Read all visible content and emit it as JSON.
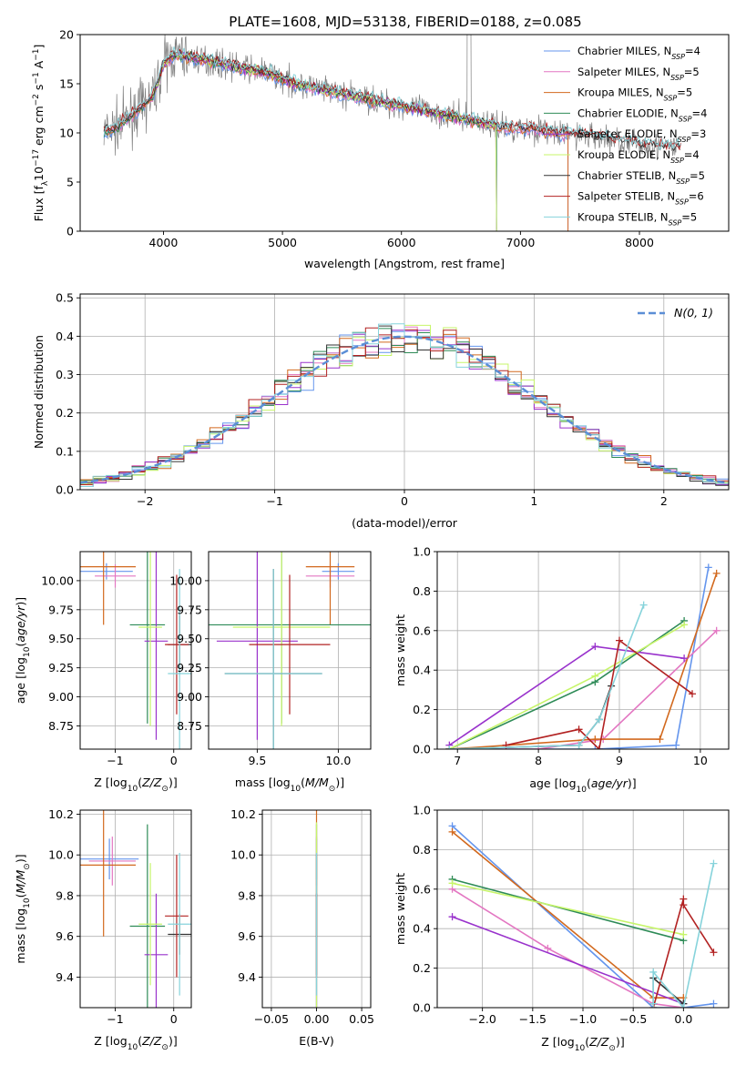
{
  "title": "PLATE=1608, MJD=53138, FIBERID=0188, z=0.085",
  "colors": {
    "Chabrier MILES": "#6495ed",
    "Salpeter MILES": "#e377c2",
    "Kroupa MILES": "#d2691e",
    "Chabrier ELODIE": "#2e8b57",
    "Salpeter ELODIE": "#9932cc",
    "Kroupa ELODIE": "#c7f56a",
    "Chabrier STELIB": "#333333",
    "Salpeter STELIB": "#b22222",
    "Kroupa STELIB": "#86d3db",
    "data": "#808080"
  },
  "chart_data": [
    {
      "id": "spectrum",
      "type": "line",
      "title": "PLATE=1608, MJD=53138, FIBERID=0188, z=0.085",
      "xlabel": "wavelength [Angstrom, rest frame]",
      "ylabel": "Flux [f_λ 10^-17 erg cm^-2 s^-1 A^-1]",
      "xlim": [
        3300,
        8750
      ],
      "ylim": [
        0,
        20
      ],
      "xticks": [
        4000,
        5000,
        6000,
        7000,
        8000
      ],
      "yticks": [
        0,
        5,
        10,
        15,
        20
      ],
      "legend_position": "top-right",
      "legend": [
        {
          "model": "Chabrier MILES",
          "nssp": "4"
        },
        {
          "model": "Salpeter MILES",
          "nssp": "5"
        },
        {
          "model": "Kroupa MILES",
          "nssp": "5"
        },
        {
          "model": "Chabrier ELODIE",
          "nssp": "4"
        },
        {
          "model": "Salpeter ELODIE",
          "nssp": "3"
        },
        {
          "model": "Kroupa ELODIE",
          "nssp": "4"
        },
        {
          "model": "Chabrier STELIB",
          "nssp": "5"
        },
        {
          "model": "Salpeter STELIB",
          "nssp": "6"
        },
        {
          "model": "Kroupa STELIB",
          "nssp": "5"
        }
      ],
      "continuum": {
        "x": [
          3500,
          3600,
          3700,
          3800,
          3900,
          3950,
          4000,
          4100,
          4300,
          4500,
          4700,
          4900,
          5100,
          5300,
          5500,
          5700,
          5900,
          6100,
          6300,
          6500,
          6700,
          6900,
          7100,
          7300,
          7500,
          7700,
          7900,
          8100,
          8300
        ],
        "y": [
          10,
          10.5,
          11.5,
          12.5,
          13.5,
          15,
          17,
          18,
          17.5,
          17,
          16.5,
          16,
          15,
          14.5,
          14,
          13.5,
          13,
          12.5,
          12,
          11.5,
          11,
          10.5,
          10.5,
          10,
          9.8,
          9.5,
          9,
          8.7,
          8.5
        ]
      }
    },
    {
      "id": "residuals",
      "type": "line",
      "xlabel": "(data-model)/error",
      "ylabel": "Normed distribution",
      "xlim": [
        -2.5,
        2.5
      ],
      "ylim": [
        0,
        0.51
      ],
      "xticks": [
        -2,
        -1,
        0,
        1,
        2
      ],
      "yticks": [
        0.0,
        0.1,
        0.2,
        0.3,
        0.4,
        0.5
      ],
      "legend_position": "top-right",
      "reference_label": "N(0, 1)",
      "bin_width": 0.1
    },
    {
      "id": "age-vs-Z",
      "type": "scatter",
      "xlabel": "Z [log10(Z/Z⊙)]",
      "ylabel": "age  [log10(age/yr)]",
      "xlim": [
        -1.6,
        0.3
      ],
      "ylim": [
        8.55,
        10.25
      ],
      "xticks": [
        -1,
        0
      ],
      "yticks": [
        8.75,
        9.0,
        9.25,
        9.5,
        9.75,
        10.0
      ],
      "points": [
        {
          "model": "Chabrier MILES",
          "x": -1.15,
          "xerr": 0.45,
          "y": 10.08,
          "yerr": 0.07
        },
        {
          "model": "Salpeter MILES",
          "x": -1.0,
          "xerr": 0.35,
          "y": 10.04,
          "yerr": 0.1
        },
        {
          "model": "Kroupa MILES",
          "x": -1.2,
          "xerr": 0.55,
          "y": 10.12,
          "yerr": 0.5
        },
        {
          "model": "Chabrier ELODIE",
          "x": -0.45,
          "xerr": 0.3,
          "y": 9.62,
          "yerr": 0.85
        },
        {
          "model": "Salpeter ELODIE",
          "x": -0.3,
          "xerr": 0.2,
          "y": 9.48,
          "yerr": 0.85
        },
        {
          "model": "Kroupa ELODIE",
          "x": -0.4,
          "xerr": 0.2,
          "y": 9.6,
          "yerr": 0.85
        },
        {
          "model": "Chabrier STELIB",
          "x": 0.1,
          "xerr": 0.2,
          "y": 9.45,
          "yerr": 0.25
        },
        {
          "model": "Salpeter STELIB",
          "x": 0.05,
          "xerr": 0.2,
          "y": 9.45,
          "yerr": 0.6
        },
        {
          "model": "Kroupa STELIB",
          "x": 0.1,
          "xerr": 0.2,
          "y": 9.2,
          "yerr": 0.9
        }
      ]
    },
    {
      "id": "age-vs-mass",
      "type": "scatter",
      "xlabel": "mass [log10(M/M⊙)]",
      "ylabel": "",
      "xlim": [
        9.2,
        10.2
      ],
      "ylim": [
        8.55,
        10.25
      ],
      "xticks": [
        9.5,
        10.0
      ],
      "yticks": [
        8.75,
        9.0,
        9.25,
        9.5,
        9.75,
        10.0
      ],
      "points": [
        {
          "model": "Chabrier MILES",
          "x": 10.0,
          "xerr": 0.1,
          "y": 10.08,
          "yerr": 0.07
        },
        {
          "model": "Salpeter MILES",
          "x": 9.95,
          "xerr": 0.15,
          "y": 10.04,
          "yerr": 0.1
        },
        {
          "model": "Kroupa MILES",
          "x": 9.95,
          "xerr": 0.15,
          "y": 10.12,
          "yerr": 0.5
        },
        {
          "model": "Chabrier ELODIE",
          "x": 9.65,
          "xerr": 0.55,
          "y": 9.62,
          "yerr": 0.85
        },
        {
          "model": "Salpeter ELODIE",
          "x": 9.5,
          "xerr": 0.25,
          "y": 9.48,
          "yerr": 0.85
        },
        {
          "model": "Kroupa ELODIE",
          "x": 9.65,
          "xerr": 0.3,
          "y": 9.6,
          "yerr": 0.85
        },
        {
          "model": "Chabrier STELIB",
          "x": 9.6,
          "xerr": 0.3,
          "y": 9.2,
          "yerr": 0.9
        },
        {
          "model": "Salpeter STELIB",
          "x": 9.7,
          "xerr": 0.25,
          "y": 9.45,
          "yerr": 0.6
        },
        {
          "model": "Kroupa STELIB",
          "x": 9.6,
          "xerr": 0.3,
          "y": 9.2,
          "yerr": 0.9
        }
      ]
    },
    {
      "id": "mass-weight-vs-age",
      "type": "line",
      "xlabel": "age  [log10(age/yr)]",
      "ylabel": "mass weight",
      "xlim": [
        6.75,
        10.35
      ],
      "ylim": [
        0,
        1
      ],
      "xticks": [
        7,
        8,
        9,
        10
      ],
      "yticks": [
        0.0,
        0.2,
        0.4,
        0.6,
        0.8,
        1.0
      ],
      "series": [
        {
          "model": "Chabrier MILES",
          "x": [
            6.9,
            8.7,
            9.7,
            10.1
          ],
          "y": [
            0.0,
            0.0,
            0.02,
            0.92
          ]
        },
        {
          "model": "Salpeter MILES",
          "x": [
            6.9,
            8.0,
            8.8,
            10.2
          ],
          "y": [
            0.0,
            0.0,
            0.05,
            0.6
          ]
        },
        {
          "model": "Kroupa MILES",
          "x": [
            6.9,
            8.7,
            9.5,
            10.2
          ],
          "y": [
            0.0,
            0.05,
            0.05,
            0.89
          ]
        },
        {
          "model": "Chabrier ELODIE",
          "x": [
            6.9,
            8.7,
            9.8
          ],
          "y": [
            0.0,
            0.34,
            0.65
          ]
        },
        {
          "model": "Salpeter ELODIE",
          "x": [
            6.9,
            8.7,
            9.8
          ],
          "y": [
            0.02,
            0.52,
            0.46
          ]
        },
        {
          "model": "Kroupa ELODIE",
          "x": [
            6.9,
            8.7,
            9.8
          ],
          "y": [
            0.0,
            0.37,
            0.63
          ]
        },
        {
          "model": "Chabrier STELIB",
          "x": [
            6.9,
            8.5,
            8.75,
            8.9
          ],
          "y": [
            0.0,
            0.02,
            0.15,
            0.32
          ]
        },
        {
          "model": "Salpeter STELIB",
          "x": [
            7.6,
            8.5,
            8.75,
            9.0,
            9.9
          ],
          "y": [
            0.02,
            0.1,
            0.0,
            0.55,
            0.28
          ]
        },
        {
          "model": "Kroupa STELIB",
          "x": [
            6.9,
            8.5,
            8.75,
            9.3
          ],
          "y": [
            0.0,
            0.02,
            0.15,
            0.73
          ]
        }
      ]
    },
    {
      "id": "mass-vs-Z",
      "type": "scatter",
      "xlabel": "Z [log10(Z/Z⊙)]",
      "ylabel": "mass [log10(M/M⊙)]",
      "xlim": [
        -1.6,
        0.3
      ],
      "ylim": [
        9.25,
        10.22
      ],
      "xticks": [
        -1,
        0
      ],
      "yticks": [
        9.4,
        9.6,
        9.8,
        10.0,
        10.2
      ],
      "points": [
        {
          "model": "Chabrier MILES",
          "x": -1.1,
          "xerr": 0.5,
          "y": 9.98,
          "yerr": 0.1
        },
        {
          "model": "Salpeter MILES",
          "x": -1.05,
          "xerr": 0.4,
          "y": 9.97,
          "yerr": 0.12
        },
        {
          "model": "Kroupa MILES",
          "x": -1.2,
          "xerr": 0.55,
          "y": 9.95,
          "yerr": 0.35
        },
        {
          "model": "Chabrier ELODIE",
          "x": -0.45,
          "xerr": 0.3,
          "y": 9.65,
          "yerr": 0.5
        },
        {
          "model": "Salpeter ELODIE",
          "x": -0.3,
          "xerr": 0.2,
          "y": 9.51,
          "yerr": 0.3
        },
        {
          "model": "Kroupa ELODIE",
          "x": -0.4,
          "xerr": 0.2,
          "y": 9.66,
          "yerr": 0.3
        },
        {
          "model": "Chabrier STELIB",
          "x": 0.1,
          "xerr": 0.2,
          "y": 9.61,
          "yerr": 0.1
        },
        {
          "model": "Salpeter STELIB",
          "x": 0.05,
          "xerr": 0.2,
          "y": 9.7,
          "yerr": 0.3
        },
        {
          "model": "Kroupa STELIB",
          "x": 0.1,
          "xerr": 0.2,
          "y": 9.66,
          "yerr": 0.35
        }
      ]
    },
    {
      "id": "mass-vs-EBV",
      "type": "scatter",
      "xlabel": "E(B-V)",
      "ylabel": "",
      "xlim": [
        -0.06,
        0.06
      ],
      "ylim": [
        9.25,
        10.22
      ],
      "xticks": [
        -0.05,
        0.0,
        0.05
      ],
      "xticklabels": [
        "−0.05",
        "0.00",
        "0.05"
      ],
      "yticks": [
        9.4,
        9.6,
        9.8,
        10.0,
        10.2
      ],
      "points": [
        {
          "model": "Chabrier MILES",
          "x": 0.0,
          "y": 9.98,
          "yerr": 0.1
        },
        {
          "model": "Salpeter MILES",
          "x": 0.0,
          "y": 9.97,
          "yerr": 0.12
        },
        {
          "model": "Kroupa MILES",
          "x": 0.0,
          "y": 9.95,
          "yerr": 0.35
        },
        {
          "model": "Chabrier ELODIE",
          "x": 0.0,
          "y": 9.65,
          "yerr": 0.5
        },
        {
          "model": "Salpeter ELODIE",
          "x": 0.0,
          "y": 9.51,
          "yerr": 0.3
        },
        {
          "model": "Kroupa ELODIE",
          "x": 0.0,
          "y": 9.66,
          "yerr": 0.5
        },
        {
          "model": "Chabrier STELIB",
          "x": 0.0,
          "y": 9.61,
          "yerr": 0.2
        },
        {
          "model": "Salpeter STELIB",
          "x": 0.0,
          "y": 9.7,
          "yerr": 0.3
        },
        {
          "model": "Kroupa STELIB",
          "x": 0.0,
          "y": 9.66,
          "yerr": 0.35
        }
      ]
    },
    {
      "id": "mass-weight-vs-Z",
      "type": "line",
      "xlabel": "Z [log10(Z/Z⊙)]",
      "ylabel": "mass weight",
      "xlim": [
        -2.45,
        0.45
      ],
      "ylim": [
        0,
        1
      ],
      "xticks": [
        -2.0,
        -1.5,
        -1.0,
        -0.5,
        0.0
      ],
      "xticklabels": [
        "−2.0",
        "−1.5",
        "−1.0",
        "−0.5",
        "0.0"
      ],
      "yticks": [
        0.0,
        0.2,
        0.4,
        0.6,
        0.8,
        1.0
      ],
      "series": [
        {
          "model": "Chabrier MILES",
          "x": [
            -2.3,
            -0.3,
            0.0,
            0.3
          ],
          "y": [
            0.92,
            0.0,
            0.0,
            0.02
          ]
        },
        {
          "model": "Salpeter MILES",
          "x": [
            -2.3,
            -1.35,
            -0.3,
            0.0
          ],
          "y": [
            0.6,
            0.3,
            0.02,
            0.0
          ]
        },
        {
          "model": "Kroupa MILES",
          "x": [
            -2.3,
            -0.3,
            0.0
          ],
          "y": [
            0.89,
            0.05,
            0.05
          ]
        },
        {
          "model": "Chabrier ELODIE",
          "x": [
            -2.3,
            0.0
          ],
          "y": [
            0.65,
            0.34
          ]
        },
        {
          "model": "Salpeter ELODIE",
          "x": [
            -2.3,
            0.0
          ],
          "y": [
            0.46,
            0.02
          ]
        },
        {
          "model": "Kroupa ELODIE",
          "x": [
            -2.3,
            0.0
          ],
          "y": [
            0.63,
            0.37
          ]
        },
        {
          "model": "Chabrier STELIB",
          "x": [
            -0.3,
            -0.3,
            0.0
          ],
          "y": [
            0.02,
            0.15,
            0.02
          ]
        },
        {
          "model": "Salpeter STELIB",
          "x": [
            -0.3,
            0.0,
            0.0,
            0.3
          ],
          "y": [
            0.0,
            0.55,
            0.52,
            0.28
          ]
        },
        {
          "model": "Kroupa STELIB",
          "x": [
            -0.3,
            -0.3,
            0.0,
            0.3
          ],
          "y": [
            0.02,
            0.18,
            0.0,
            0.73
          ]
        }
      ]
    }
  ]
}
